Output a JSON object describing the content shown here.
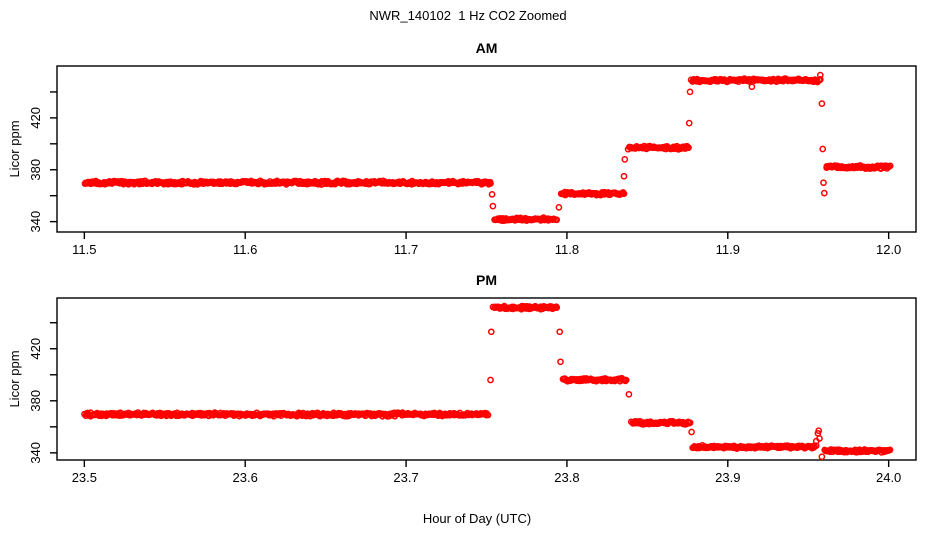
{
  "title": "NWR_140102  1 Hz CO2 Zoomed",
  "xlabel": "Hour of Day (UTC)",
  "colors": {
    "points": "#FF0000",
    "axis": "#000000",
    "background": "#FFFFFF"
  },
  "chart_data": [
    {
      "type": "scatter",
      "panel": "AM",
      "title": "AM",
      "ylabel": "Licor ppm",
      "marker": "open-circle",
      "color": "#FF0000",
      "grid": false,
      "xlim": [
        11.483,
        12.017
      ],
      "ylim": [
        332,
        460
      ],
      "xticks": [
        [
          11.5,
          "11.5"
        ],
        [
          11.6,
          "11.6"
        ],
        [
          11.7,
          "11.7"
        ],
        [
          11.8,
          "11.8"
        ],
        [
          11.9,
          "11.9"
        ],
        [
          12.0,
          "12.0"
        ]
      ],
      "yticks": [
        [
          340,
          "340"
        ],
        [
          360,
          ""
        ],
        [
          380,
          "380"
        ],
        [
          400,
          ""
        ],
        [
          420,
          "420"
        ],
        [
          440,
          ""
        ]
      ],
      "segments": [
        {
          "t0": 11.5,
          "t1": 11.753,
          "ppm": 370.0,
          "noise": 1.6
        },
        {
          "t0": 11.755,
          "t1": 11.794,
          "ppm": 341.8,
          "noise": 1.4
        },
        {
          "t0": 11.796,
          "t1": 11.836,
          "ppm": 361.5,
          "noise": 1.4
        },
        {
          "t0": 11.838,
          "t1": 11.876,
          "ppm": 397.0,
          "noise": 1.4
        },
        {
          "t0": 11.877,
          "t1": 11.958,
          "ppm": 449.0,
          "noise": 1.4
        },
        {
          "t0": 11.961,
          "t1": 12.001,
          "ppm": 382.0,
          "noise": 1.4
        }
      ],
      "transition_points": [
        [
          11.7535,
          361
        ],
        [
          11.754,
          352
        ],
        [
          11.795,
          351
        ],
        [
          11.8355,
          375
        ],
        [
          11.836,
          388
        ],
        [
          11.8755,
          397
        ],
        [
          11.876,
          416
        ],
        [
          11.8765,
          440
        ],
        [
          11.915,
          444
        ],
        [
          11.9575,
          453
        ],
        [
          11.9585,
          431
        ],
        [
          11.959,
          396
        ],
        [
          11.9595,
          370
        ],
        [
          11.96,
          362
        ]
      ]
    },
    {
      "type": "scatter",
      "panel": "PM",
      "title": "PM",
      "ylabel": "Licor ppm",
      "marker": "open-circle",
      "color": "#FF0000",
      "grid": false,
      "xlim": [
        23.483,
        24.017
      ],
      "ylim": [
        334.5,
        459
      ],
      "xticks": [
        [
          23.5,
          "23.5"
        ],
        [
          23.6,
          "23.6"
        ],
        [
          23.7,
          "23.7"
        ],
        [
          23.8,
          "23.8"
        ],
        [
          23.9,
          "23.9"
        ],
        [
          24.0,
          "24.0"
        ]
      ],
      "yticks": [
        [
          340,
          "340"
        ],
        [
          360,
          ""
        ],
        [
          380,
          "380"
        ],
        [
          400,
          ""
        ],
        [
          420,
          "420"
        ],
        [
          440,
          ""
        ]
      ],
      "segments": [
        {
          "t0": 23.5,
          "t1": 23.751,
          "ppm": 369.5,
          "noise": 1.6
        },
        {
          "t0": 23.754,
          "t1": 23.794,
          "ppm": 451.5,
          "noise": 1.4
        },
        {
          "t0": 23.797,
          "t1": 23.837,
          "ppm": 396.0,
          "noise": 1.4
        },
        {
          "t0": 23.84,
          "t1": 23.877,
          "ppm": 363.0,
          "noise": 1.4
        },
        {
          "t0": 23.878,
          "t1": 23.955,
          "ppm": 344.5,
          "noise": 1.4
        },
        {
          "t0": 23.96,
          "t1": 24.001,
          "ppm": 341.5,
          "noise": 1.3
        }
      ],
      "transition_points": [
        [
          23.7525,
          396
        ],
        [
          23.753,
          433
        ],
        [
          23.7955,
          433
        ],
        [
          23.796,
          410
        ],
        [
          23.8385,
          385
        ],
        [
          23.8775,
          356
        ],
        [
          23.955,
          349
        ],
        [
          23.956,
          355
        ],
        [
          23.9565,
          357
        ],
        [
          23.957,
          351
        ],
        [
          23.9585,
          337
        ]
      ]
    }
  ]
}
